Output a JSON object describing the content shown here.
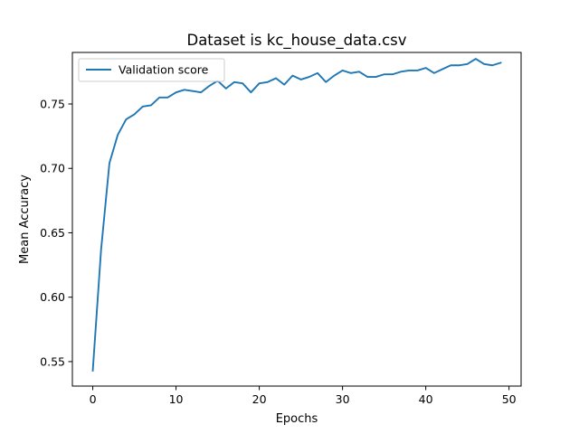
{
  "chart_data": {
    "type": "line",
    "title": "Dataset is kc_house_data.csv",
    "xlabel": "Epochs",
    "ylabel": "Mean Accuracy",
    "xlim": [
      -2.45,
      51.45
    ],
    "ylim": [
      0.531,
      0.79
    ],
    "xticks": [
      0,
      10,
      20,
      30,
      40,
      50
    ],
    "yticks": [
      0.55,
      0.6,
      0.65,
      0.7,
      0.75
    ],
    "ytick_labels": [
      "0.55",
      "0.60",
      "0.65",
      "0.70",
      "0.75"
    ],
    "grid": false,
    "legend_position": "top-left",
    "series": [
      {
        "name": "Validation score",
        "color": "#1f77b4",
        "x": [
          0,
          1,
          2,
          3,
          4,
          5,
          6,
          7,
          8,
          9,
          10,
          11,
          12,
          13,
          14,
          15,
          16,
          17,
          18,
          19,
          20,
          21,
          22,
          23,
          24,
          25,
          26,
          27,
          28,
          29,
          30,
          31,
          32,
          33,
          34,
          35,
          36,
          37,
          38,
          39,
          40,
          41,
          42,
          43,
          44,
          45,
          46,
          47,
          48,
          49
        ],
        "y": [
          0.543,
          0.637,
          0.704,
          0.726,
          0.738,
          0.742,
          0.748,
          0.749,
          0.755,
          0.755,
          0.759,
          0.761,
          0.76,
          0.759,
          0.764,
          0.768,
          0.762,
          0.767,
          0.766,
          0.759,
          0.766,
          0.767,
          0.77,
          0.765,
          0.772,
          0.769,
          0.771,
          0.774,
          0.767,
          0.772,
          0.776,
          0.774,
          0.775,
          0.771,
          0.771,
          0.773,
          0.773,
          0.775,
          0.776,
          0.776,
          0.778,
          0.774,
          0.777,
          0.78,
          0.78,
          0.781,
          0.785,
          0.781,
          0.78,
          0.782
        ]
      }
    ]
  }
}
